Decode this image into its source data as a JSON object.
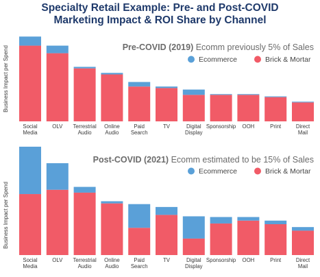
{
  "title_line1": "Specialty Retail Example: Pre- and Post-COVID",
  "title_line2": "Marketing Impact & ROI Share by Channel",
  "colors": {
    "ecommerce": "#5aa0d8",
    "brick": "#f15b67",
    "title": "#1f3a6b"
  },
  "chart_data": [
    {
      "type": "bar",
      "stacked": true,
      "annotation_bold": "Pre-COVID (2019)",
      "annotation_rest": "Ecomm previously 5% of Sales",
      "ylabel": "Business Impact per Spend",
      "ylim": [
        0,
        115
      ],
      "legend_position": "top-right",
      "categories": [
        "Social Media",
        "OLV",
        "Terrestrial Audio",
        "Online Audio",
        "Paid Search",
        "TV",
        "Digital Display",
        "Sponsorship",
        "OOH",
        "Print",
        "Direct Mail"
      ],
      "series": [
        {
          "name": "Brick & Mortar",
          "color": "#f15b67",
          "values": [
            100,
            90,
            70,
            62,
            46,
            44,
            35,
            35,
            35,
            32,
            25
          ]
        },
        {
          "name": "Ecommerce",
          "color": "#5aa0d8",
          "values": [
            12,
            10,
            2,
            2,
            6,
            2,
            7,
            1,
            1,
            1,
            1
          ]
        }
      ]
    },
    {
      "type": "bar",
      "stacked": true,
      "annotation_bold": "Post-COVID (2021)",
      "annotation_rest": "Ecomm estimated to be 15% of Sales",
      "ylabel": "Business Impact per Spend",
      "ylim": [
        0,
        150
      ],
      "legend_position": "top-right",
      "categories": [
        "Social Media",
        "OLV",
        "Terrestrial Audio",
        "Online Audio",
        "Paid Search",
        "TV",
        "Digital Display",
        "Sponsorship",
        "OOH",
        "Print",
        "Direct Mail"
      ],
      "series": [
        {
          "name": "Brick & Mortar",
          "color": "#f15b67",
          "values": [
            85,
            91,
            87,
            72,
            38,
            56,
            23,
            44,
            48,
            43,
            34
          ]
        },
        {
          "name": "Ecommerce",
          "color": "#5aa0d8",
          "values": [
            66,
            37,
            8,
            3,
            33,
            11,
            31,
            9,
            5,
            5,
            5
          ]
        }
      ]
    }
  ]
}
